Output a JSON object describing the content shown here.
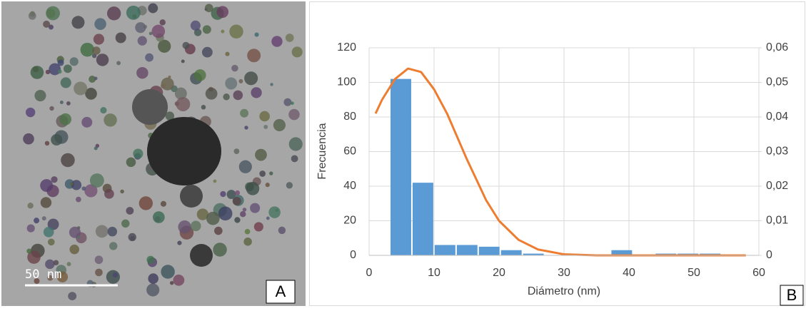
{
  "image": {
    "scale_bar_label": "50 nm",
    "panel_label": "A"
  },
  "chart_data": {
    "type": "histogram",
    "panel_label": "B",
    "x_label": "Diámetro  (nm)",
    "y_label": "Frecuencia",
    "bins": [
      3.3,
      6.7,
      10.1,
      13.5,
      16.9,
      20.3,
      23.7,
      27.1,
      30.5,
      33.9,
      37.3,
      40.7,
      44.1,
      47.5,
      50.9,
      54.3,
      57.7
    ],
    "values": [
      102,
      42,
      6,
      6,
      5,
      3,
      1,
      0,
      0,
      0,
      3,
      0,
      1,
      1,
      1,
      0
    ],
    "color": "#5b9bd5",
    "curve": {
      "type": "line",
      "axis": "y2",
      "color": "#ed7d31",
      "x": [
        1,
        2,
        4,
        6,
        8,
        10,
        12,
        15,
        18,
        20,
        23,
        26,
        30,
        35,
        40,
        45,
        50,
        55,
        58
      ],
      "values": [
        0.041,
        0.045,
        0.051,
        0.054,
        0.053,
        0.048,
        0.041,
        0.028,
        0.016,
        0.01,
        0.0045,
        0.0017,
        0.0003,
        0,
        0,
        0,
        0,
        0,
        0
      ]
    },
    "xlim": [
      0,
      60
    ],
    "xticks": [
      0,
      10,
      20,
      30,
      40,
      50,
      60
    ],
    "ylim": [
      0,
      120
    ],
    "yticks": [
      0,
      20,
      40,
      60,
      80,
      100,
      120
    ],
    "y2lim": [
      0,
      0.06
    ],
    "y2ticks": [
      0,
      {
        "value": 0.01,
        "label": "0,01"
      },
      {
        "value": 0.02,
        "label": "0,02"
      },
      {
        "value": 0.03,
        "label": "0,03"
      },
      {
        "value": 0.04,
        "label": "0,04"
      },
      {
        "value": 0.05,
        "label": "0,05"
      },
      {
        "value": 0.06,
        "label": "0,06"
      }
    ],
    "grid": true
  }
}
